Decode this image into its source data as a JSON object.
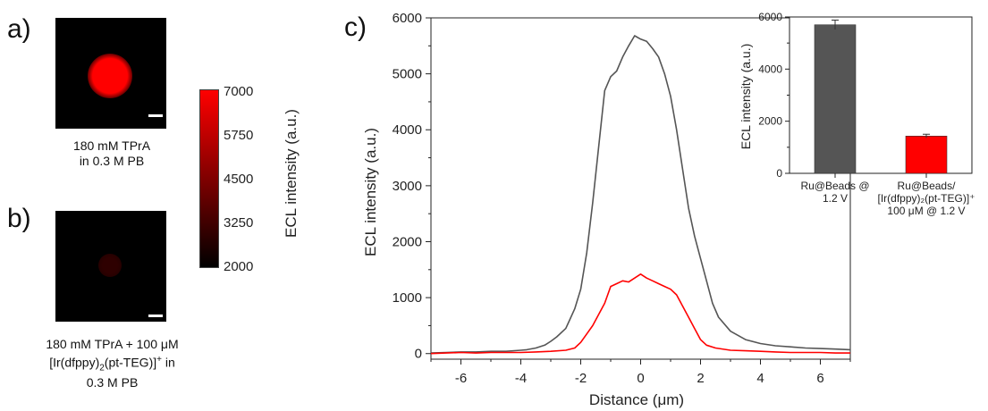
{
  "labels": {
    "a": "a)",
    "b": "b)",
    "c": "c)"
  },
  "panel_a": {
    "caption_line1": "180 mM TPrA",
    "caption_line2": "in 0.3 M PB",
    "spot_intensity": 7000
  },
  "panel_b": {
    "caption_line1": "180 mM TPrA + 100 μM",
    "caption_line2_pre": "[Ir(dfppy)",
    "caption_line2_sub": "2",
    "caption_line2_mid": "(pt-TEG)]",
    "caption_line2_sup": "+",
    "caption_line2_post": " in",
    "caption_line3": "0.3 M PB",
    "spot_intensity": 2900
  },
  "colorbar": {
    "ticks": [
      "7000",
      "5750",
      "4500",
      "3250",
      "2000"
    ],
    "label": "ECL intensity (a.u.)",
    "range": [
      2000,
      7000
    ],
    "color_high": "#ff0000",
    "color_low": "#000000"
  },
  "chart_data": [
    {
      "type": "line",
      "xlabel": "Distance (μm)",
      "ylabel": "ECL intensity (a.u.)",
      "xlim": [
        -7,
        7
      ],
      "ylim": [
        -100,
        6000
      ],
      "xticks": [
        -6,
        -4,
        -2,
        0,
        2,
        4,
        6
      ],
      "yticks": [
        0,
        1000,
        2000,
        3000,
        4000,
        5000,
        6000
      ],
      "series": [
        {
          "color": "#555555",
          "x": [
            -7,
            -6.5,
            -6,
            -5.5,
            -5,
            -4.5,
            -4,
            -3.8,
            -3.5,
            -3.2,
            -3,
            -2.8,
            -2.5,
            -2.2,
            -2,
            -1.8,
            -1.6,
            -1.4,
            -1.2,
            -1,
            -0.8,
            -0.6,
            -0.4,
            -0.2,
            0,
            0.2,
            0.4,
            0.6,
            0.8,
            1,
            1.2,
            1.4,
            1.6,
            1.8,
            2,
            2.2,
            2.4,
            2.6,
            3,
            3.5,
            4,
            4.5,
            5,
            5.5,
            6,
            6.5,
            7
          ],
          "y": [
            10,
            20,
            30,
            30,
            40,
            40,
            60,
            70,
            100,
            150,
            220,
            300,
            450,
            800,
            1150,
            1800,
            2700,
            3700,
            4700,
            4950,
            5050,
            5300,
            5500,
            5680,
            5620,
            5580,
            5450,
            5300,
            5000,
            4600,
            4000,
            3300,
            2600,
            2100,
            1700,
            1300,
            900,
            650,
            400,
            250,
            180,
            140,
            120,
            100,
            90,
            80,
            70
          ]
        },
        {
          "color": "#ff0000",
          "x": [
            -7,
            -6.5,
            -6,
            -5.5,
            -5,
            -4.5,
            -4,
            -3.5,
            -3,
            -2.5,
            -2.2,
            -2,
            -1.8,
            -1.6,
            -1.4,
            -1.2,
            -1,
            -0.8,
            -0.6,
            -0.4,
            -0.2,
            0,
            0.2,
            0.4,
            0.6,
            0.8,
            1,
            1.2,
            1.4,
            1.6,
            1.8,
            2,
            2.2,
            2.5,
            3,
            3.5,
            4,
            4.5,
            5,
            5.5,
            6,
            6.5,
            7
          ],
          "y": [
            0,
            10,
            20,
            10,
            20,
            20,
            20,
            30,
            40,
            60,
            100,
            200,
            350,
            500,
            700,
            900,
            1200,
            1250,
            1300,
            1280,
            1350,
            1420,
            1350,
            1300,
            1250,
            1200,
            1150,
            1050,
            850,
            650,
            450,
            250,
            150,
            100,
            60,
            50,
            40,
            30,
            20,
            20,
            20,
            10,
            10
          ]
        }
      ]
    },
    {
      "type": "bar",
      "ylabel": "ECL intensity (a.u.)",
      "ylim": [
        0,
        6000
      ],
      "yticks": [
        0,
        2000,
        4000,
        6000
      ],
      "categories": [
        [
          "Ru@Beads @",
          "1.2 V"
        ],
        [
          "Ru@Beads/",
          "[Ir(dfppy)₂(pt-TEG)]⁺",
          "100 μM @ 1.2 V"
        ]
      ],
      "values": [
        5700,
        1430
      ],
      "errors": [
        180,
        70
      ],
      "colors": [
        "#555555",
        "#ff0000"
      ]
    }
  ]
}
